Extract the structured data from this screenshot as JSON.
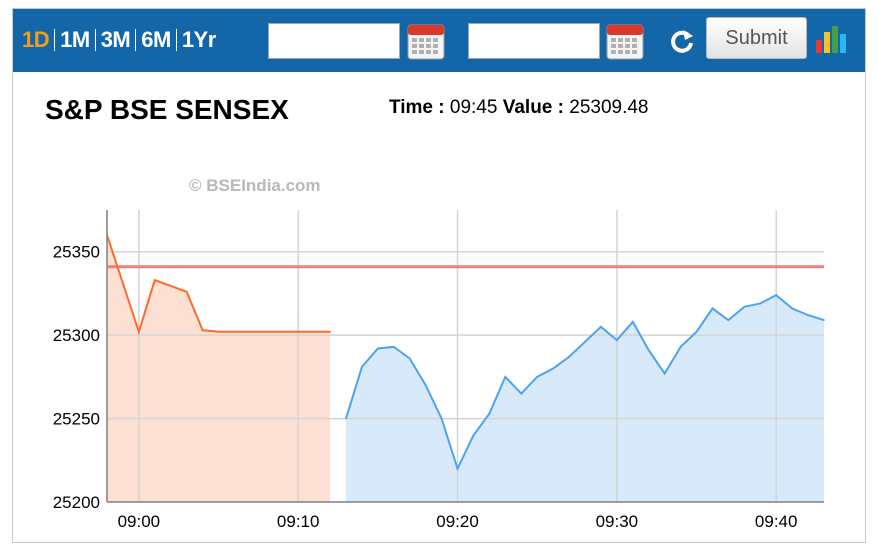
{
  "toolbar": {
    "periods": [
      "1D",
      "1M",
      "3M",
      "6M",
      "1Yr"
    ],
    "active_period": "1D",
    "from_date": "",
    "to_date": "",
    "submit_label": "Submit",
    "icons": [
      "calendar-icon",
      "calendar-icon",
      "refresh-icon",
      "bar-chart-icon"
    ],
    "colors": {
      "bar": "#1366a8",
      "active_period": "#f39c1f"
    }
  },
  "header": {
    "title": "S&P BSE SENSEX",
    "time_label": "Time :",
    "time_value": "09:45",
    "value_label": "Value :",
    "value_value": "25309.48"
  },
  "watermark": "© BSEIndia.com",
  "chart_data": {
    "type": "area",
    "title": "S&P BSE SENSEX",
    "xlabel": "",
    "ylabel": "",
    "x_ticks": [
      "09:00",
      "09:10",
      "09:20",
      "09:30",
      "09:40"
    ],
    "y_ticks": [
      25200,
      25250,
      25300,
      25350
    ],
    "ylim": [
      25200,
      25375
    ],
    "xlim": [
      "08:58",
      "09:43"
    ],
    "grid": true,
    "reference_line": {
      "value": 25341,
      "color": "#f08080"
    },
    "series": [
      {
        "color": "#ff6a2b",
        "fill": "#fde0d4",
        "x": [
          "08:58",
          "09:00",
          "09:01",
          "09:03",
          "09:04",
          "09:05",
          "09:06",
          "09:07",
          "09:08",
          "09:09",
          "09:10",
          "09:11",
          "09:12"
        ],
        "values": [
          25360,
          25302,
          25333,
          25326,
          25303,
          25302,
          25302,
          25302,
          25302,
          25302,
          25302,
          25302,
          25302
        ]
      },
      {
        "color": "#4da3f0",
        "fill": "#d8e9f9",
        "x": [
          "09:13",
          "09:14",
          "09:15",
          "09:16",
          "09:17",
          "09:18",
          "09:19",
          "09:20",
          "09:21",
          "09:22",
          "09:23",
          "09:24",
          "09:25",
          "09:26",
          "09:27",
          "09:28",
          "09:29",
          "09:30",
          "09:31",
          "09:32",
          "09:33",
          "09:34",
          "09:35",
          "09:36",
          "09:37",
          "09:38",
          "09:39",
          "09:40",
          "09:41",
          "09:42",
          "09:43"
        ],
        "values": [
          25250,
          25281,
          25292,
          25293,
          25286,
          25270,
          25250,
          25220,
          25240,
          25253,
          25275,
          25265,
          25275,
          25280,
          25287,
          25296,
          25305,
          25297,
          25308,
          25291,
          25277,
          25293,
          25302,
          25316,
          25309,
          25317,
          25319,
          25324,
          25316,
          25312,
          25309
        ]
      }
    ]
  }
}
